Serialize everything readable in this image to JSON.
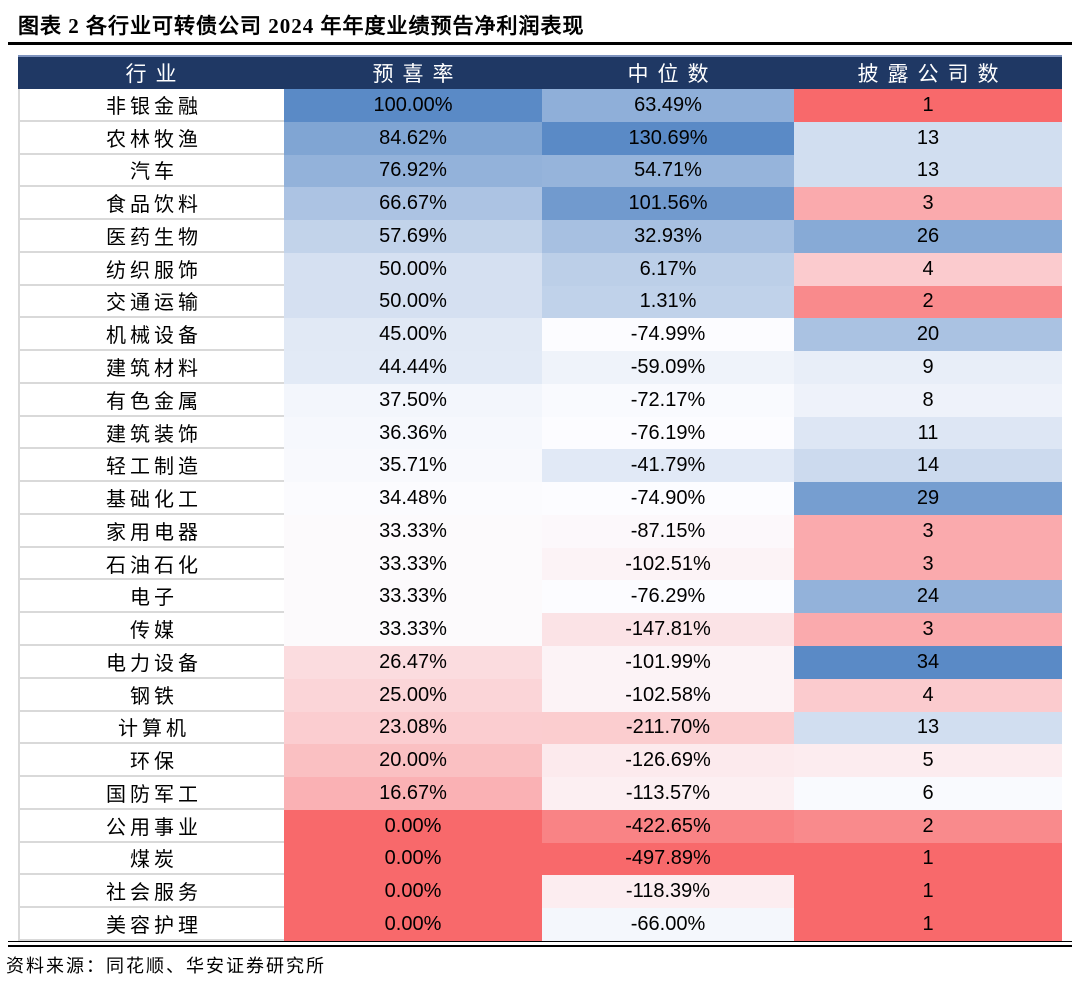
{
  "title": "图表 2  各行业可转债公司 2024 年年度业绩预告净利润表现",
  "source_note": "资料来源：同花顺、华安证券研究所",
  "colors": {
    "header_bg": "#1F3864",
    "header_text": "#FFFFFF",
    "row_divider": "#D9D9D9",
    "rule": "#000000",
    "scale_min_red": "#F8696B",
    "scale_mid_white": "#FCFCFF",
    "scale_max_blue": "#5A8AC6"
  },
  "chart_data": {
    "type": "table",
    "title": "各行业可转债公司2024年年度业绩预告净利润表现",
    "columns": [
      "行业",
      "预喜率",
      "中位数",
      "披露公司数"
    ],
    "column_keys": [
      "industry",
      "rate",
      "median",
      "count"
    ],
    "conditional_format": "per-column 3-color scale: min #F8696B (red) → 50th percentile #FCFCFF (white) → max #5A8AC6 (blue)",
    "rows": [
      {
        "industry": "非银金融",
        "rate": "100.00%",
        "median": "63.49%",
        "count": "1",
        "rate_bg": "#5A8AC6",
        "median_bg": "#8FAFD9",
        "count_bg": "#F8696B"
      },
      {
        "industry": "农林牧渔",
        "rate": "84.62%",
        "median": "130.69%",
        "count": "13",
        "rate_bg": "#80A5D3",
        "median_bg": "#5A8AC6",
        "count_bg": "#D1DEF0"
      },
      {
        "industry": "汽车",
        "rate": "76.92%",
        "median": "54.71%",
        "count": "13",
        "rate_bg": "#93B2DA",
        "median_bg": "#96B4DB",
        "count_bg": "#D1DEF0"
      },
      {
        "industry": "食品饮料",
        "rate": "66.67%",
        "median": "101.56%",
        "count": "3",
        "rate_bg": "#ACC3E3",
        "median_bg": "#719ACE",
        "count_bg": "#FAAAAD"
      },
      {
        "industry": "医药生物",
        "rate": "57.69%",
        "median": "32.93%",
        "count": "26",
        "rate_bg": "#C2D3EA",
        "median_bg": "#A7C0E1",
        "count_bg": "#87AAD6"
      },
      {
        "industry": "纺织服饰",
        "rate": "50.00%",
        "median": "6.17%",
        "count": "4",
        "rate_bg": "#D5E0F1",
        "median_bg": "#BCCFE8",
        "count_bg": "#FBCBCE"
      },
      {
        "industry": "交通运输",
        "rate": "50.00%",
        "median": "1.31%",
        "count": "2",
        "rate_bg": "#D5E0F1",
        "median_bg": "#C0D2EA",
        "count_bg": "#F98A8C"
      },
      {
        "industry": "机械设备",
        "rate": "45.00%",
        "median": "-74.99%",
        "count": "20",
        "rate_bg": "#E1E9F5",
        "median_bg": "#FCFCFF",
        "count_bg": "#AAC2E2"
      },
      {
        "industry": "建筑材料",
        "rate": "44.44%",
        "median": "-59.09%",
        "count": "9",
        "rate_bg": "#E2EAF6",
        "median_bg": "#EFF3FA",
        "count_bg": "#E8EEF8"
      },
      {
        "industry": "有色金属",
        "rate": "37.50%",
        "median": "-72.17%",
        "count": "8",
        "rate_bg": "#F3F6FC",
        "median_bg": "#F9FAFE",
        "count_bg": "#EEF2FA"
      },
      {
        "industry": "建筑装饰",
        "rate": "36.36%",
        "median": "-76.19%",
        "count": "11",
        "rate_bg": "#F6F8FD",
        "median_bg": "#FCFCFF",
        "count_bg": "#DDE6F4"
      },
      {
        "industry": "轻工制造",
        "rate": "35.71%",
        "median": "-41.79%",
        "count": "14",
        "rate_bg": "#F8F9FD",
        "median_bg": "#E1E9F6",
        "count_bg": "#CCDAEE"
      },
      {
        "industry": "基础化工",
        "rate": "34.48%",
        "median": "-74.90%",
        "count": "29",
        "rate_bg": "#FBFBFE",
        "median_bg": "#FCFCFF",
        "count_bg": "#769ED0"
      },
      {
        "industry": "家用电器",
        "rate": "33.33%",
        "median": "-87.15%",
        "count": "3",
        "rate_bg": "#FCFAFC",
        "median_bg": "#FCF8FB",
        "count_bg": "#FAAAAD"
      },
      {
        "industry": "石油石化",
        "rate": "33.33%",
        "median": "-102.51%",
        "count": "3",
        "rate_bg": "#FCFAFC",
        "median_bg": "#FCF3F6",
        "count_bg": "#FAAAAD"
      },
      {
        "industry": "电子",
        "rate": "33.33%",
        "median": "-76.29%",
        "count": "24",
        "rate_bg": "#FCFAFC",
        "median_bg": "#FCFCFF",
        "count_bg": "#93B2DA"
      },
      {
        "industry": "传媒",
        "rate": "33.33%",
        "median": "-147.81%",
        "count": "3",
        "rate_bg": "#FCFAFC",
        "median_bg": "#FBE3E6",
        "count_bg": "#FAAAAD"
      },
      {
        "industry": "电力设备",
        "rate": "26.47%",
        "median": "-101.99%",
        "count": "34",
        "rate_bg": "#FBDCDF",
        "median_bg": "#FCF3F6",
        "count_bg": "#5A8AC6"
      },
      {
        "industry": "钢铁",
        "rate": "25.00%",
        "median": "-102.58%",
        "count": "4",
        "rate_bg": "#FBD5D8",
        "median_bg": "#FCF3F6",
        "count_bg": "#FBCBCE"
      },
      {
        "industry": "计算机",
        "rate": "23.08%",
        "median": "-211.70%",
        "count": "13",
        "rate_bg": "#FBCDD0",
        "median_bg": "#FBCDCF",
        "count_bg": "#D1DEF0"
      },
      {
        "industry": "环保",
        "rate": "20.00%",
        "median": "-126.69%",
        "count": "5",
        "rate_bg": "#FAC0C2",
        "median_bg": "#FCEAED",
        "count_bg": "#FCECEF"
      },
      {
        "industry": "国防军工",
        "rate": "16.67%",
        "median": "-113.57%",
        "count": "6",
        "rate_bg": "#FAB1B4",
        "median_bg": "#FCEFF2",
        "count_bg": "#F9FAFE"
      },
      {
        "industry": "公用事业",
        "rate": "0.00%",
        "median": "-422.65%",
        "count": "2",
        "rate_bg": "#F8696B",
        "median_bg": "#F98385",
        "count_bg": "#F98A8C"
      },
      {
        "industry": "煤炭",
        "rate": "0.00%",
        "median": "-497.89%",
        "count": "1",
        "rate_bg": "#F8696B",
        "median_bg": "#F8696B",
        "count_bg": "#F8696B"
      },
      {
        "industry": "社会服务",
        "rate": "0.00%",
        "median": "-118.39%",
        "count": "1",
        "rate_bg": "#F8696B",
        "median_bg": "#FCEDF0",
        "count_bg": "#F8696B"
      },
      {
        "industry": "美容护理",
        "rate": "0.00%",
        "median": "-66.00%",
        "count": "1",
        "rate_bg": "#F8696B",
        "median_bg": "#F4F7FC",
        "count_bg": "#F8696B"
      }
    ]
  }
}
